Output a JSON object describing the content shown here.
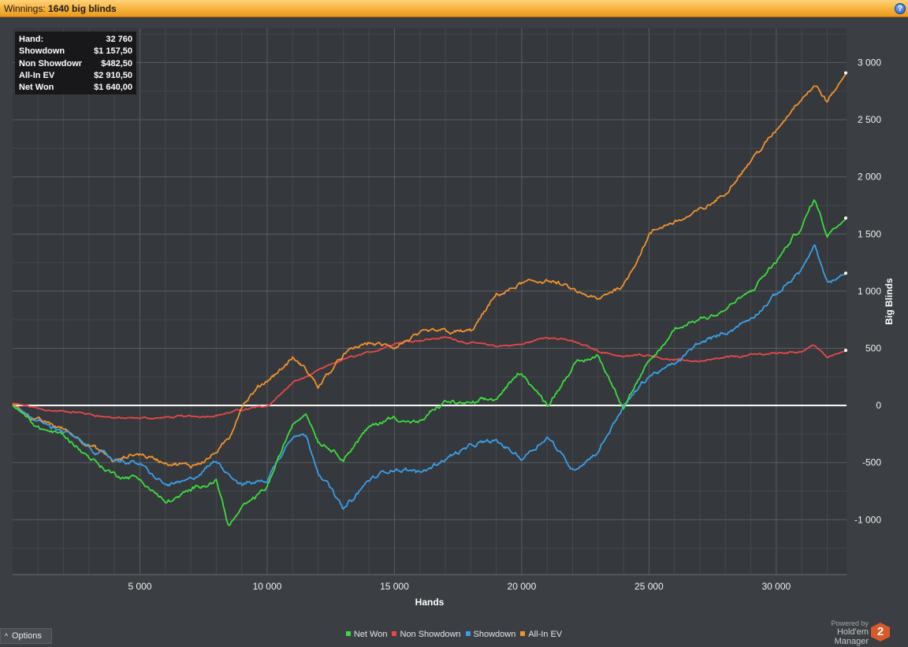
{
  "header": {
    "label_prefix": "Winnings:",
    "title": "1640 big blinds",
    "help_icon": "help-icon"
  },
  "info_box": {
    "rows": [
      {
        "label": "Hand:",
        "value": "32 760"
      },
      {
        "label": "Showdown",
        "value": "$1 157,50"
      },
      {
        "label": "Non Showdown",
        "value": "$482,50"
      },
      {
        "label": "All-In EV",
        "value": "$2 910,50"
      },
      {
        "label": "Net Won",
        "value": "$1 640,00"
      }
    ]
  },
  "footer": {
    "options_label": "Options",
    "powered_by": "Powered by",
    "product": "Hold'em Manager",
    "logo_text": "2"
  },
  "chart_data": {
    "type": "line",
    "xlabel": "Hands",
    "ylabel": "Big Blinds",
    "xlim": [
      0,
      32760
    ],
    "ylim": [
      -1480,
      3300
    ],
    "x_ticks": [
      5000,
      10000,
      15000,
      20000,
      25000,
      30000
    ],
    "x_tick_labels": [
      "5 000",
      "10 000",
      "15 000",
      "20 000",
      "25 000",
      "30 000"
    ],
    "y_ticks": [
      -1000,
      -500,
      0,
      500,
      1000,
      1500,
      2000,
      2500,
      3000
    ],
    "y_tick_labels": [
      "-1 000",
      "-500",
      "0",
      "500",
      "1 000",
      "1 500",
      "2 000",
      "2 500",
      "3 000"
    ],
    "grid": true,
    "legend_position": "bottom",
    "x": [
      0,
      1000,
      2000,
      3000,
      4000,
      5000,
      6000,
      7000,
      8000,
      8500,
      9000,
      10000,
      11000,
      11500,
      12000,
      13000,
      14000,
      15000,
      16000,
      17000,
      18000,
      19000,
      20000,
      21000,
      22000,
      23000,
      24000,
      25000,
      26000,
      27000,
      28000,
      29000,
      30000,
      31000,
      31500,
      32000,
      32760
    ],
    "series": [
      {
        "name": "Net Won",
        "color": "#3ddc3d",
        "values": [
          0,
          -180,
          -250,
          -450,
          -600,
          -650,
          -850,
          -750,
          -650,
          -1050,
          -900,
          -700,
          -150,
          -50,
          -300,
          -450,
          -200,
          -100,
          -150,
          20,
          0,
          50,
          300,
          0,
          350,
          450,
          0,
          350,
          650,
          750,
          850,
          1000,
          1250,
          1550,
          1800,
          1500,
          1640
        ]
      },
      {
        "name": "Non Showdown",
        "color": "#e84848",
        "values": [
          20,
          -30,
          -50,
          -80,
          -110,
          -120,
          -110,
          -100,
          -80,
          -60,
          -40,
          0,
          200,
          250,
          300,
          400,
          460,
          550,
          580,
          600,
          550,
          520,
          530,
          600,
          560,
          480,
          430,
          450,
          400,
          390,
          420,
          440,
          460,
          480,
          540,
          420,
          482
        ]
      },
      {
        "name": "Showdown",
        "color": "#3a9fe8",
        "values": [
          0,
          -150,
          -220,
          -370,
          -480,
          -520,
          -700,
          -650,
          -500,
          -600,
          -700,
          -650,
          -250,
          -250,
          -550,
          -900,
          -650,
          -550,
          -600,
          -450,
          -350,
          -300,
          -450,
          -250,
          -550,
          -400,
          0,
          250,
          350,
          550,
          650,
          750,
          950,
          1200,
          1400,
          1050,
          1157
        ]
      },
      {
        "name": "All-In EV",
        "color": "#f0922e",
        "values": [
          10,
          -130,
          -200,
          -330,
          -500,
          -430,
          -500,
          -550,
          -400,
          -300,
          0,
          200,
          400,
          300,
          150,
          450,
          550,
          500,
          600,
          650,
          650,
          950,
          1050,
          1100,
          1000,
          900,
          1050,
          1500,
          1600,
          1700,
          1850,
          2150,
          2400,
          2700,
          2800,
          2650,
          2910
        ]
      }
    ]
  }
}
